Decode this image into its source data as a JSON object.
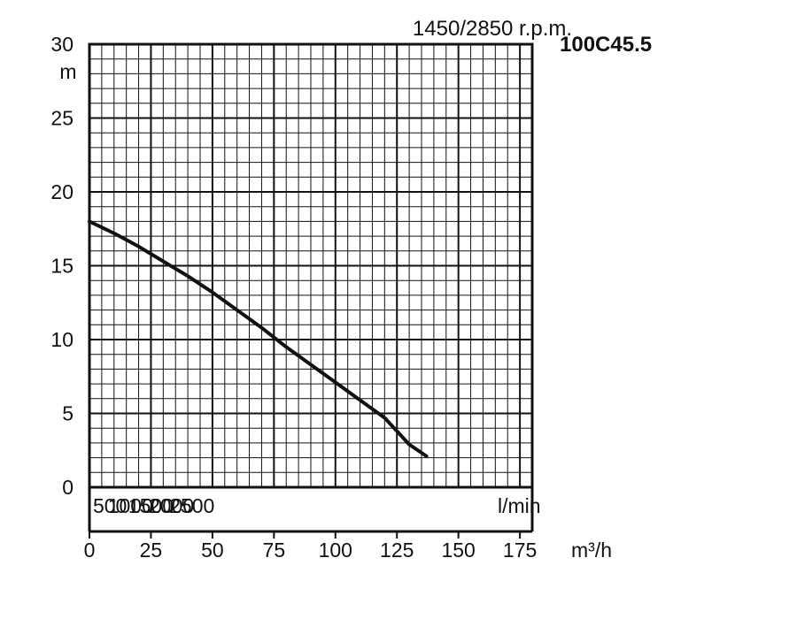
{
  "chart_data": {
    "type": "line",
    "title": "1450/2850 r.p.m.",
    "model": "100C45.5",
    "ylabel": "m",
    "ylim": [
      0,
      30
    ],
    "yticks": [
      0,
      5,
      10,
      15,
      20,
      25,
      30
    ],
    "xlabel": "m³/h",
    "xlim": [
      0,
      180
    ],
    "xticks": [
      0,
      25,
      50,
      75,
      100,
      125,
      150,
      175
    ],
    "secondary_x": {
      "label": "l/min",
      "ticks": [
        500,
        1000,
        1500,
        2000,
        2500
      ]
    },
    "grid": true,
    "series": [
      {
        "x": [
          0,
          10,
          20,
          30,
          40,
          50,
          60,
          70,
          80,
          90,
          100,
          110,
          120,
          125,
          130,
          137
        ],
        "y": [
          18.0,
          17.2,
          16.3,
          15.3,
          14.3,
          13.2,
          12.0,
          10.8,
          9.5,
          8.3,
          7.1,
          5.9,
          4.7,
          3.8,
          2.9,
          2.1
        ]
      }
    ],
    "style": {
      "line_color": "#111111",
      "grid_color": "#111111",
      "background": "#ffffff"
    }
  }
}
